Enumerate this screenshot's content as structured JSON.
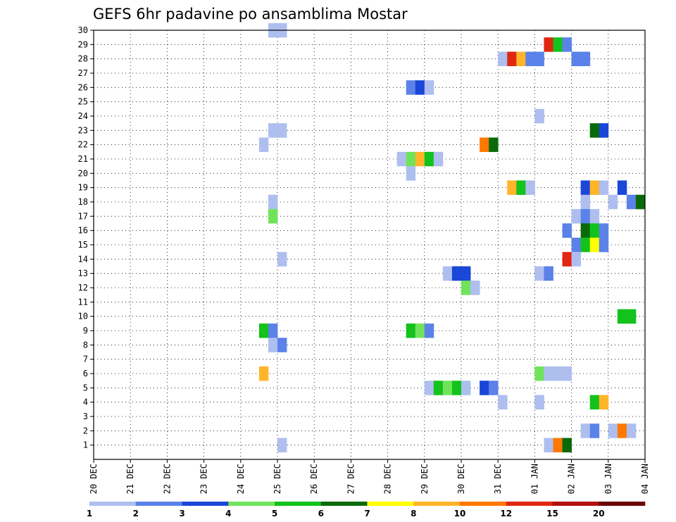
{
  "chart_data": {
    "type": "heatmap",
    "title": "GEFS 6hr padavine po ansamblima Mostar",
    "xlabel": "",
    "ylabel": "",
    "x_range": [
      "20 DEC 00Z",
      "04 JAN 00Z"
    ],
    "x_step_hours": 6,
    "x_tick_labels": [
      "20 DEC",
      "21 DEC",
      "22 DEC",
      "23 DEC",
      "24 DEC",
      "25 DEC",
      "26 DEC",
      "27 DEC",
      "28 DEC",
      "29 DEC",
      "30 DEC",
      "31 DEC",
      "01 JAN",
      "02 JAN",
      "03 JAN",
      "04 JAN"
    ],
    "y_tick_labels": [
      "1",
      "2",
      "3",
      "4",
      "5",
      "6",
      "7",
      "8",
      "9",
      "10",
      "11",
      "12",
      "13",
      "14",
      "15",
      "16",
      "17",
      "18",
      "19",
      "20",
      "21",
      "22",
      "23",
      "24",
      "25",
      "26",
      "27",
      "28",
      "29",
      "30"
    ],
    "ylim": [
      0,
      30
    ],
    "grid": true,
    "colorbar": {
      "placement": "bottom",
      "tick_labels": [
        "1",
        "2",
        "3",
        "4",
        "5",
        "6",
        "7",
        "8",
        "10",
        "12",
        "15",
        "20"
      ],
      "colors": [
        "#aebfef",
        "#5b82e8",
        "#1a47d8",
        "#6fe45b",
        "#13c21b",
        "#0a6a0a",
        "#ffff00",
        "#ffb42a",
        "#ff7800",
        "#e12711",
        "#b30f0f",
        "#6b0606"
      ]
    },
    "cells": [
      {
        "m": 30,
        "s": 19,
        "c": 0
      },
      {
        "m": 30,
        "s": 20,
        "c": 0
      },
      {
        "m": 29,
        "s": 49,
        "c": 9
      },
      {
        "m": 29,
        "s": 50,
        "c": 4
      },
      {
        "m": 29,
        "s": 51,
        "c": 1
      },
      {
        "m": 28,
        "s": 44,
        "c": 0
      },
      {
        "m": 28,
        "s": 45,
        "c": 9
      },
      {
        "m": 28,
        "s": 46,
        "c": 7
      },
      {
        "m": 28,
        "s": 47,
        "c": 1
      },
      {
        "m": 28,
        "s": 48,
        "c": 1
      },
      {
        "m": 28,
        "s": 52,
        "c": 1
      },
      {
        "m": 28,
        "s": 53,
        "c": 1
      },
      {
        "m": 26,
        "s": 34,
        "c": 1
      },
      {
        "m": 26,
        "s": 35,
        "c": 2
      },
      {
        "m": 26,
        "s": 36,
        "c": 0
      },
      {
        "m": 24,
        "s": 48,
        "c": 0
      },
      {
        "m": 23,
        "s": 19,
        "c": 0
      },
      {
        "m": 23,
        "s": 20,
        "c": 0
      },
      {
        "m": 23,
        "s": 54,
        "c": 5
      },
      {
        "m": 23,
        "s": 55,
        "c": 2
      },
      {
        "m": 22,
        "s": 18,
        "c": 0
      },
      {
        "m": 22,
        "s": 42,
        "c": 8
      },
      {
        "m": 22,
        "s": 43,
        "c": 5
      },
      {
        "m": 21,
        "s": 33,
        "c": 0
      },
      {
        "m": 21,
        "s": 34,
        "c": 3
      },
      {
        "m": 21,
        "s": 35,
        "c": 7
      },
      {
        "m": 21,
        "s": 36,
        "c": 4
      },
      {
        "m": 21,
        "s": 37,
        "c": 0
      },
      {
        "m": 20,
        "s": 34,
        "c": 0
      },
      {
        "m": 19,
        "s": 45,
        "c": 7
      },
      {
        "m": 19,
        "s": 46,
        "c": 4
      },
      {
        "m": 19,
        "s": 47,
        "c": 0
      },
      {
        "m": 19,
        "s": 53,
        "c": 2
      },
      {
        "m": 19,
        "s": 54,
        "c": 7
      },
      {
        "m": 19,
        "s": 55,
        "c": 0
      },
      {
        "m": 19,
        "s": 57,
        "c": 2
      },
      {
        "m": 18,
        "s": 19,
        "c": 0
      },
      {
        "m": 18,
        "s": 53,
        "c": 0
      },
      {
        "m": 18,
        "s": 56,
        "c": 0
      },
      {
        "m": 18,
        "s": 58,
        "c": 1
      },
      {
        "m": 18,
        "s": 59,
        "c": 5
      },
      {
        "m": 17,
        "s": 19,
        "c": 3
      },
      {
        "m": 17,
        "s": 52,
        "c": 0
      },
      {
        "m": 17,
        "s": 53,
        "c": 1
      },
      {
        "m": 17,
        "s": 54,
        "c": 0
      },
      {
        "m": 16,
        "s": 51,
        "c": 1
      },
      {
        "m": 16,
        "s": 53,
        "c": 5
      },
      {
        "m": 16,
        "s": 54,
        "c": 4
      },
      {
        "m": 16,
        "s": 55,
        "c": 1
      },
      {
        "m": 15,
        "s": 52,
        "c": 1
      },
      {
        "m": 15,
        "s": 53,
        "c": 4
      },
      {
        "m": 15,
        "s": 54,
        "c": 6
      },
      {
        "m": 15,
        "s": 55,
        "c": 1
      },
      {
        "m": 14,
        "s": 20,
        "c": 0
      },
      {
        "m": 14,
        "s": 51,
        "c": 9
      },
      {
        "m": 14,
        "s": 52,
        "c": 0
      },
      {
        "m": 13,
        "s": 38,
        "c": 0
      },
      {
        "m": 13,
        "s": 39,
        "c": 2
      },
      {
        "m": 13,
        "s": 40,
        "c": 2
      },
      {
        "m": 13,
        "s": 48,
        "c": 0
      },
      {
        "m": 13,
        "s": 49,
        "c": 1
      },
      {
        "m": 12,
        "s": 40,
        "c": 3
      },
      {
        "m": 12,
        "s": 41,
        "c": 0
      },
      {
        "m": 10,
        "s": 57,
        "c": 4
      },
      {
        "m": 10,
        "s": 58,
        "c": 4
      },
      {
        "m": 9,
        "s": 18,
        "c": 4
      },
      {
        "m": 9,
        "s": 19,
        "c": 1
      },
      {
        "m": 9,
        "s": 34,
        "c": 4
      },
      {
        "m": 9,
        "s": 35,
        "c": 3
      },
      {
        "m": 9,
        "s": 36,
        "c": 1
      },
      {
        "m": 8,
        "s": 19,
        "c": 0
      },
      {
        "m": 8,
        "s": 20,
        "c": 1
      },
      {
        "m": 6,
        "s": 18,
        "c": 7
      },
      {
        "m": 6,
        "s": 48,
        "c": 3
      },
      {
        "m": 6,
        "s": 49,
        "c": 0
      },
      {
        "m": 6,
        "s": 50,
        "c": 0
      },
      {
        "m": 6,
        "s": 51,
        "c": 0
      },
      {
        "m": 5,
        "s": 36,
        "c": 0
      },
      {
        "m": 5,
        "s": 37,
        "c": 4
      },
      {
        "m": 5,
        "s": 38,
        "c": 3
      },
      {
        "m": 5,
        "s": 39,
        "c": 4
      },
      {
        "m": 5,
        "s": 40,
        "c": 0
      },
      {
        "m": 5,
        "s": 42,
        "c": 2
      },
      {
        "m": 5,
        "s": 43,
        "c": 1
      },
      {
        "m": 4,
        "s": 44,
        "c": 0
      },
      {
        "m": 4,
        "s": 48,
        "c": 0
      },
      {
        "m": 4,
        "s": 54,
        "c": 4
      },
      {
        "m": 4,
        "s": 55,
        "c": 7
      },
      {
        "m": 2,
        "s": 53,
        "c": 0
      },
      {
        "m": 2,
        "s": 54,
        "c": 1
      },
      {
        "m": 2,
        "s": 56,
        "c": 0
      },
      {
        "m": 2,
        "s": 57,
        "c": 8
      },
      {
        "m": 2,
        "s": 58,
        "c": 0
      },
      {
        "m": 1,
        "s": 20,
        "c": 0
      },
      {
        "m": 1,
        "s": 49,
        "c": 0
      },
      {
        "m": 1,
        "s": 50,
        "c": 8
      },
      {
        "m": 1,
        "s": 51,
        "c": 5
      }
    ],
    "cells_legend": "m = ensemble member (y value), s = 6-hour step index from 20 DEC 00Z (x value), c = colorbar class index"
  }
}
